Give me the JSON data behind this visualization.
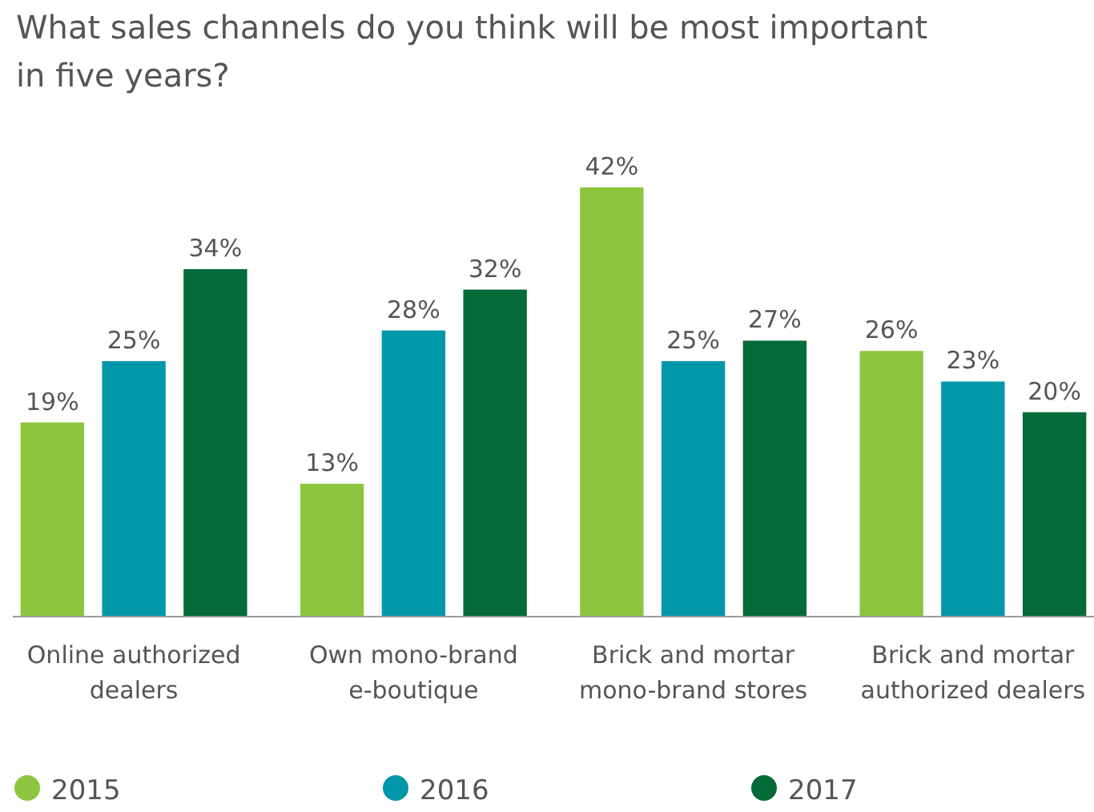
{
  "chart_data": {
    "type": "bar",
    "title": "What sales channels do you think will be most important in five years?",
    "categories": [
      "Online authorized dealers",
      "Own mono-brand e-boutique",
      "Brick and mortar mono-brand stores",
      "Brick and mortar authorized dealers"
    ],
    "series": [
      {
        "name": "2015",
        "color": "#8cc63f",
        "values": [
          19,
          13,
          42,
          26
        ],
        "value_labels": [
          "19%",
          "13%",
          "42%",
          "26%"
        ]
      },
      {
        "name": "2016",
        "color": "#0097a9",
        "values": [
          25,
          28,
          25,
          23
        ],
        "value_labels": [
          "25%",
          "28%",
          "25%",
          "23%"
        ]
      },
      {
        "name": "2017",
        "color": "#046a38",
        "values": [
          34,
          32,
          27,
          20
        ],
        "value_labels": [
          "34%",
          "32%",
          "27%",
          "20%"
        ]
      }
    ],
    "legend": "bottom",
    "grid": false,
    "marker": "circle"
  }
}
